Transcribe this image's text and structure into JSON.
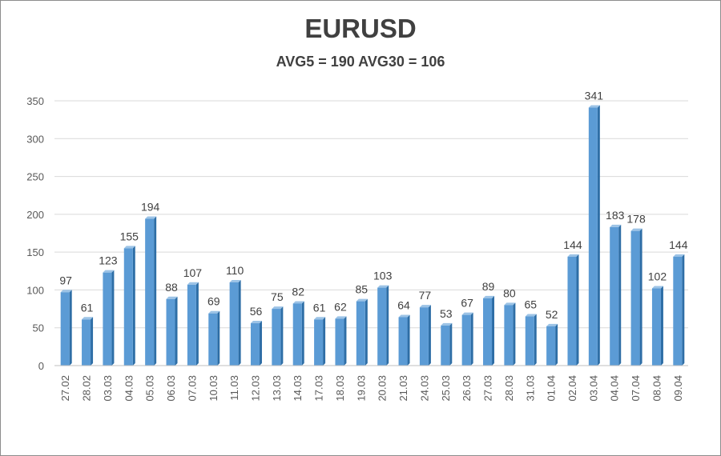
{
  "chart_data": {
    "type": "bar",
    "title": "EURUSD",
    "subtitle": "AVG5 = 190 AVG30 = 106",
    "categories": [
      "27.02",
      "28.02",
      "03.03",
      "04.03",
      "05.03",
      "06.03",
      "07.03",
      "10.03",
      "11.03",
      "12.03",
      "13.03",
      "14.03",
      "17.03",
      "18.03",
      "19.03",
      "20.03",
      "21.03",
      "24.03",
      "25.03",
      "26.03",
      "27.03",
      "28.03",
      "31.03",
      "01.04",
      "02.04",
      "03.04",
      "04.04",
      "07.04",
      "08.04",
      "09.04"
    ],
    "values": [
      97,
      61,
      123,
      155,
      194,
      88,
      107,
      69,
      110,
      56,
      75,
      82,
      61,
      62,
      85,
      103,
      64,
      77,
      53,
      67,
      89,
      80,
      65,
      52,
      144,
      341,
      183,
      178,
      102,
      144
    ],
    "ylim": [
      0,
      350
    ],
    "yticks": [
      0,
      50,
      100,
      150,
      200,
      250,
      300,
      350
    ],
    "grid": true,
    "bar_color": "#5b9bd5",
    "bar_color_dark": "#2e6ea6",
    "grid_color": "#d9d9d9"
  }
}
